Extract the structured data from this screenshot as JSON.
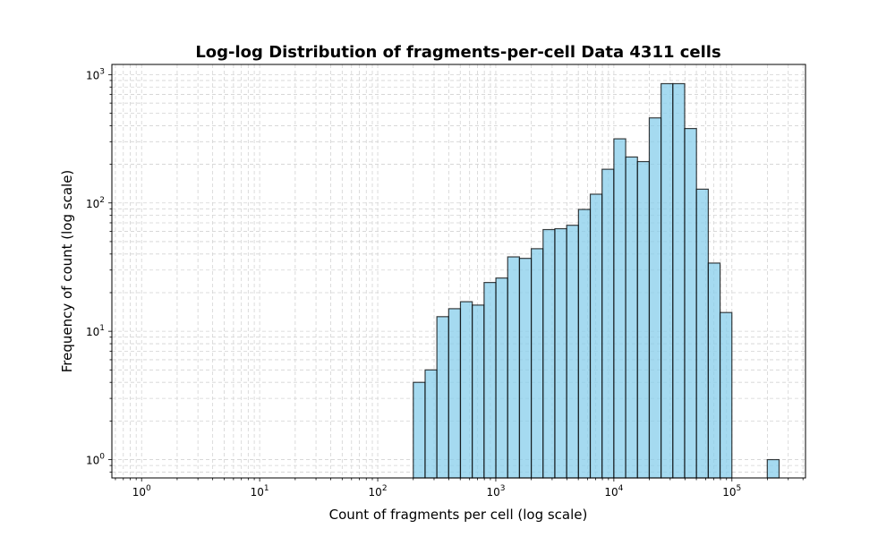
{
  "chart_data": {
    "type": "bar",
    "title": "Log-log Distribution of fragments-per-cell Data 4311 cells",
    "xlabel": "Count of fragments per cell (log scale)",
    "ylabel": "Frequency of count (log scale)",
    "x_scale": "log",
    "y_scale": "log",
    "xlim": [
      0.56,
      420000
    ],
    "ylim": [
      0.72,
      1200
    ],
    "grid": true,
    "grid_which": "both",
    "x_ticks": [
      {
        "base": "10",
        "exp": "0",
        "value": 1
      },
      {
        "base": "10",
        "exp": "1",
        "value": 10
      },
      {
        "base": "10",
        "exp": "2",
        "value": 100
      },
      {
        "base": "10",
        "exp": "3",
        "value": 1000
      },
      {
        "base": "10",
        "exp": "4",
        "value": 10000
      },
      {
        "base": "10",
        "exp": "5",
        "value": 100000
      }
    ],
    "y_ticks": [
      {
        "base": "10",
        "exp": "0",
        "value": 1
      },
      {
        "base": "10",
        "exp": "1",
        "value": 10
      },
      {
        "base": "10",
        "exp": "2",
        "value": 100
      },
      {
        "base": "10",
        "exp": "3",
        "value": 1000
      }
    ],
    "bin_edges": [
      200,
      252,
      317,
      399,
      502,
      632,
      796,
      1002,
      1261,
      1587,
      1998,
      2515,
      3166,
      3985,
      5016,
      6314,
      7948,
      10005,
      12594,
      15853,
      19955,
      25119,
      31619,
      39802,
      50102,
      63067,
      79388,
      99932,
      125793,
      158346,
      199322,
      250900
    ],
    "values": [
      4,
      5,
      13,
      15,
      17,
      16,
      24,
      26,
      38,
      37,
      44,
      62,
      63,
      67,
      89,
      117,
      183,
      316,
      228,
      210,
      460,
      850,
      850,
      380,
      128,
      34,
      14,
      0,
      0,
      0,
      1
    ],
    "bar_color": "#87CEEB",
    "edge_color": "#000000"
  }
}
